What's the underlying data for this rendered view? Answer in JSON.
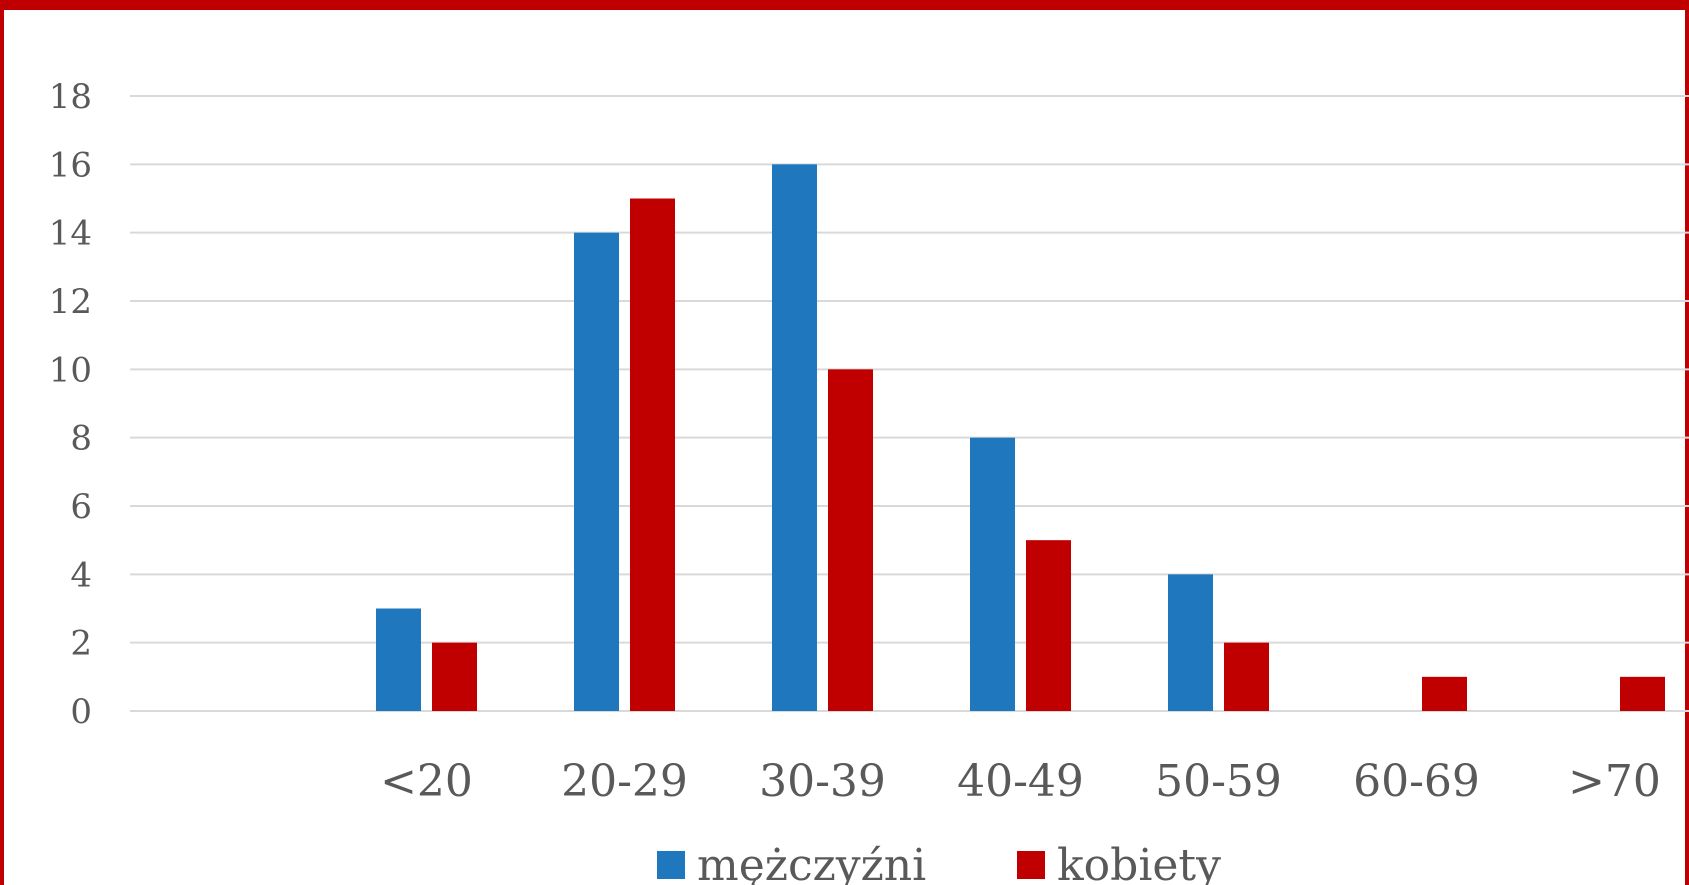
{
  "chart_data": {
    "type": "bar",
    "categories": [
      "<20",
      "20-29",
      "30-39",
      "40-49",
      "50-59",
      "60-69",
      ">70"
    ],
    "series": [
      {
        "name": "mężczyźni",
        "values": [
          3,
          14,
          16,
          8,
          4,
          0,
          0
        ],
        "color": "#1f77bd"
      },
      {
        "name": "kobiety",
        "values": [
          2,
          15,
          10,
          5,
          2,
          1,
          1
        ],
        "color": "#c00000"
      }
    ],
    "ylim": [
      0,
      18
    ],
    "yticks": [
      0,
      2,
      4,
      6,
      8,
      10,
      12,
      14,
      16,
      18
    ],
    "grid": true,
    "legend_position": "bottom",
    "frame_color": "#c00000",
    "grid_color": "#d9d9d9",
    "text_color": "#595959"
  }
}
